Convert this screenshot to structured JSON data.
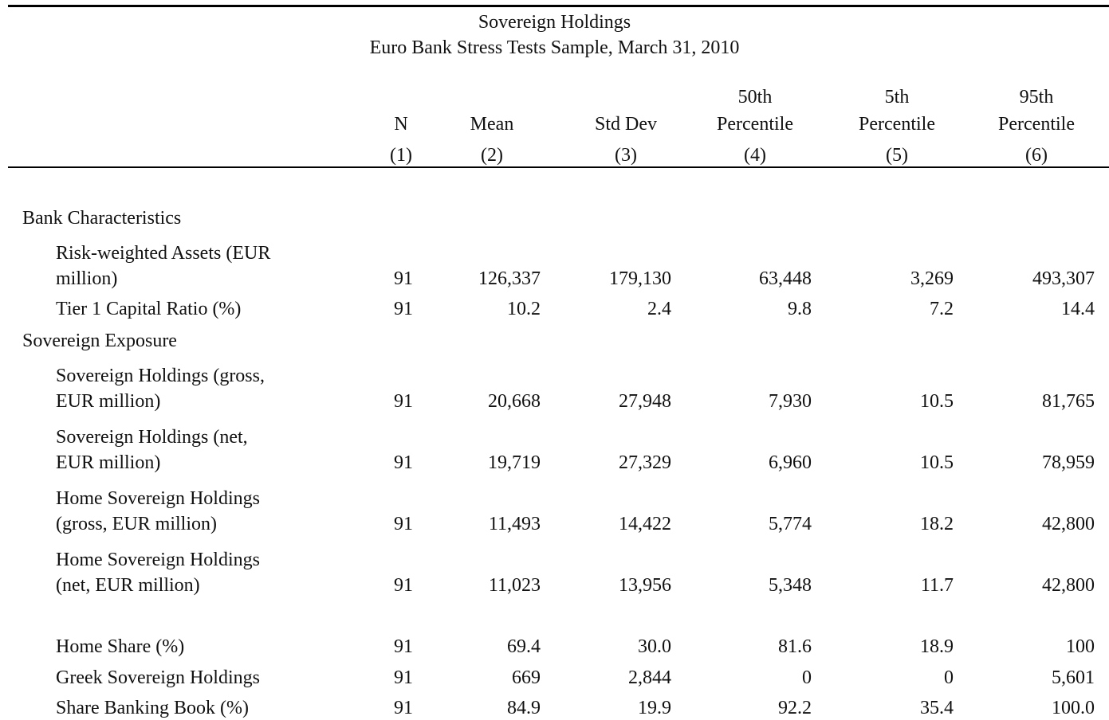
{
  "header": {
    "title": "Sovereign Holdings",
    "subtitle": "Euro Bank Stress Tests Sample, March 31, 2010"
  },
  "table": {
    "columns": [
      {
        "name": [
          "N"
        ],
        "number": "(1)"
      },
      {
        "name": [
          "Mean"
        ],
        "number": "(2)"
      },
      {
        "name": [
          "Std Dev"
        ],
        "number": "(3)"
      },
      {
        "name": [
          "50th",
          "Percentile"
        ],
        "number": "(4)"
      },
      {
        "name": [
          "5th",
          "Percentile"
        ],
        "number": "(5)"
      },
      {
        "name": [
          "95th",
          "Percentile"
        ],
        "number": "(6)"
      }
    ],
    "sections": [
      {
        "title": "Bank Characteristics",
        "rows": [
          {
            "label": [
              "Risk-weighted Assets (EUR",
              "million)"
            ],
            "values": [
              "91",
              "126,337",
              "179,130",
              "63,448",
              "3,269",
              "493,307"
            ]
          },
          {
            "label": [
              "Tier 1 Capital Ratio (%)"
            ],
            "values": [
              "91",
              "10.2",
              "2.4",
              "9.8",
              "7.2",
              "14.4"
            ]
          }
        ]
      },
      {
        "title": "Sovereign Exposure",
        "rows": [
          {
            "label": [
              "Sovereign Holdings (gross,",
              "EUR million)"
            ],
            "values": [
              "91",
              "20,668",
              "27,948",
              "7,930",
              "10.5",
              "81,765"
            ]
          },
          {
            "label": [
              "Sovereign Holdings (net,",
              "EUR million)"
            ],
            "values": [
              "91",
              "19,719",
              "27,329",
              "6,960",
              "10.5",
              "78,959"
            ]
          },
          {
            "label": [
              "Home Sovereign Holdings",
              "(gross, EUR million)"
            ],
            "values": [
              "91",
              "11,493",
              "14,422",
              "5,774",
              "18.2",
              "42,800"
            ]
          },
          {
            "label": [
              "Home Sovereign Holdings",
              "(net, EUR million)"
            ],
            "values": [
              "91",
              "11,023",
              "13,956",
              "5,348",
              "11.7",
              "42,800"
            ]
          },
          {
            "label": [
              "Home Share (%)"
            ],
            "values": [
              "91",
              "69.4",
              "30.0",
              "81.6",
              "18.9",
              "100"
            ]
          },
          {
            "label": [
              "Greek Sovereign Holdings"
            ],
            "values": [
              "91",
              "669",
              "2,844",
              "0",
              "0",
              "5,601"
            ]
          },
          {
            "label": [
              "Share Banking Book (%)"
            ],
            "values": [
              "91",
              "84.9",
              "19.9",
              "92.2",
              "35.4",
              "100.0"
            ]
          }
        ]
      }
    ]
  }
}
